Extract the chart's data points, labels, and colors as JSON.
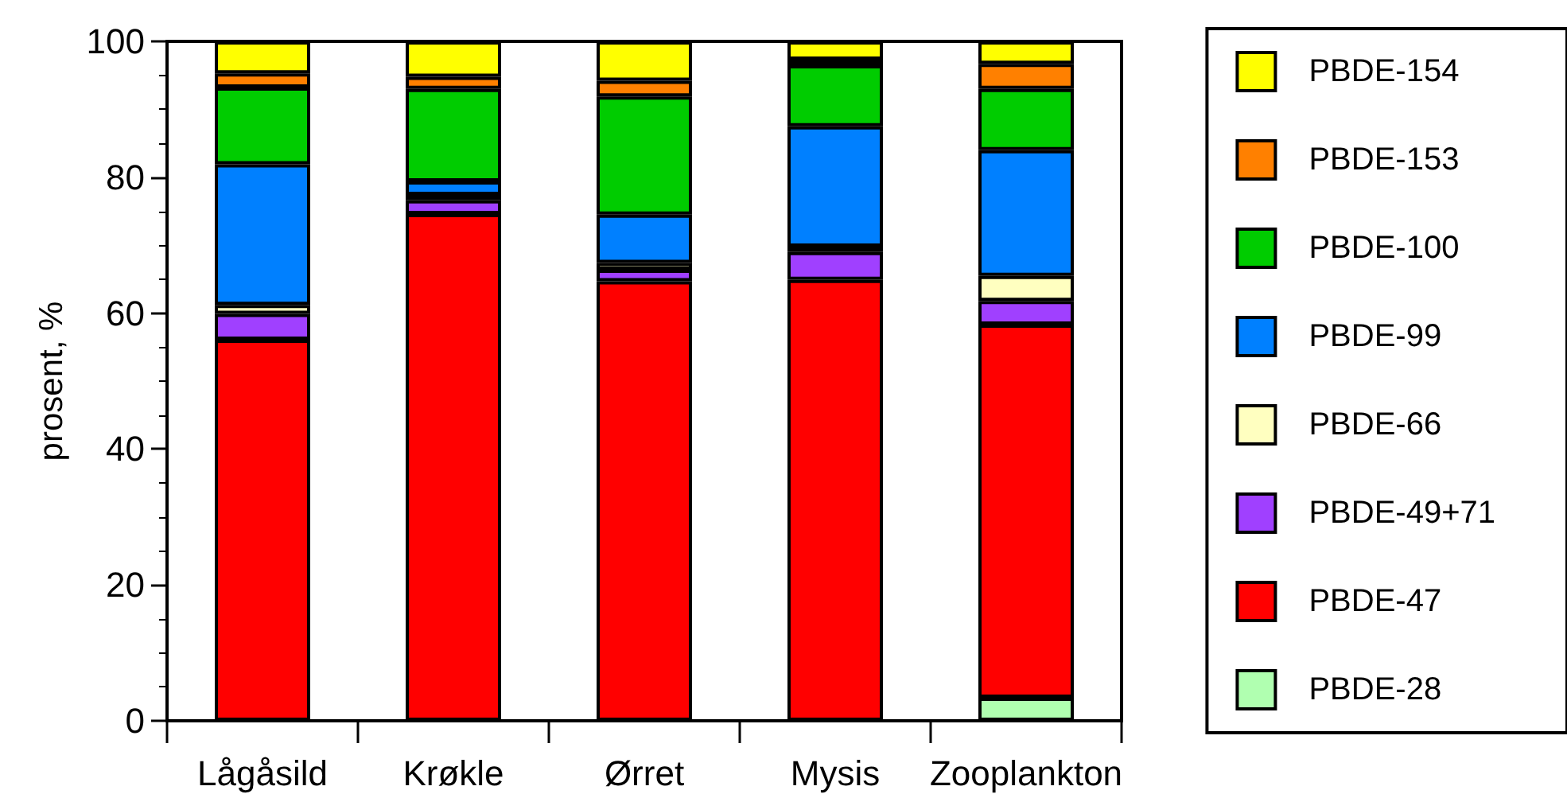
{
  "chart_data": {
    "type": "bar",
    "stacked": true,
    "ylabel": "prosent, %",
    "categories": [
      "Lågåsild",
      "Krøkle",
      "Ørret",
      "Mysis",
      "Zooplankton"
    ],
    "ylim": [
      0,
      100
    ],
    "yticks": [
      0,
      20,
      40,
      60,
      80,
      100
    ],
    "grid": false,
    "legend": "right",
    "series": [
      {
        "name": "PBDE-28",
        "color": "#b0ffb0",
        "values": [
          0,
          0,
          0,
          0,
          3.4
        ]
      },
      {
        "name": "PBDE-47",
        "color": "#ff0000",
        "values": [
          56.1,
          74.6,
          64.7,
          64.9,
          54.9
        ]
      },
      {
        "name": "PBDE-49+71",
        "color": "#a040ff",
        "values": [
          3.8,
          2.0,
          1.7,
          4.1,
          3.5
        ]
      },
      {
        "name": "PBDE-66",
        "color": "#ffffc0",
        "values": [
          1.3,
          0.8,
          1.0,
          0.8,
          3.7
        ]
      },
      {
        "name": "PBDE-99",
        "color": "#0080ff",
        "values": [
          20.7,
          2.0,
          7.1,
          17.7,
          18.5
        ]
      },
      {
        "name": "PBDE-100",
        "color": "#00cc00",
        "values": [
          11.3,
          13.6,
          17.4,
          9.0,
          9.0
        ]
      },
      {
        "name": "PBDE-153",
        "color": "#ff8000",
        "values": [
          2.1,
          1.8,
          2.3,
          0.8,
          3.7
        ]
      },
      {
        "name": "PBDE-154",
        "color": "#ffff00",
        "values": [
          4.7,
          5.2,
          5.8,
          2.7,
          3.3
        ]
      }
    ]
  }
}
